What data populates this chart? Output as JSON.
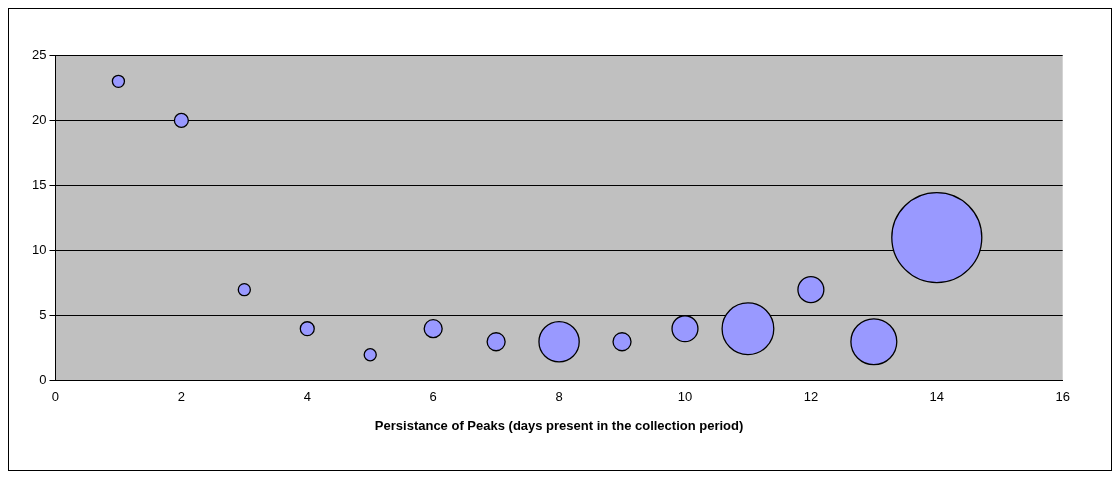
{
  "chart_data": {
    "type": "bubble",
    "xlabel": "Persistance of Peaks (days present in the collection period)",
    "x": [
      1,
      2,
      3,
      4,
      5,
      6,
      7,
      8,
      9,
      10,
      11,
      12,
      13,
      14
    ],
    "series": [
      {
        "color": "#9999ff",
        "values": [
          23,
          20,
          7,
          4,
          2,
          4,
          3,
          3,
          3,
          4,
          4,
          7,
          3,
          11
        ],
        "sizes": [
          0.018,
          0.024,
          0.018,
          0.024,
          0.018,
          0.04,
          0.04,
          0.2,
          0.04,
          0.083,
          0.33,
          0.083,
          0.26,
          1
        ]
      }
    ],
    "xlim": [
      0,
      16
    ],
    "xticks": [
      0,
      2,
      4,
      6,
      8,
      10,
      12,
      14,
      16
    ],
    "ylim": [
      0,
      25
    ],
    "yticks": [
      0,
      5,
      10,
      15,
      20,
      25
    ],
    "grid": "y",
    "legend": false
  }
}
